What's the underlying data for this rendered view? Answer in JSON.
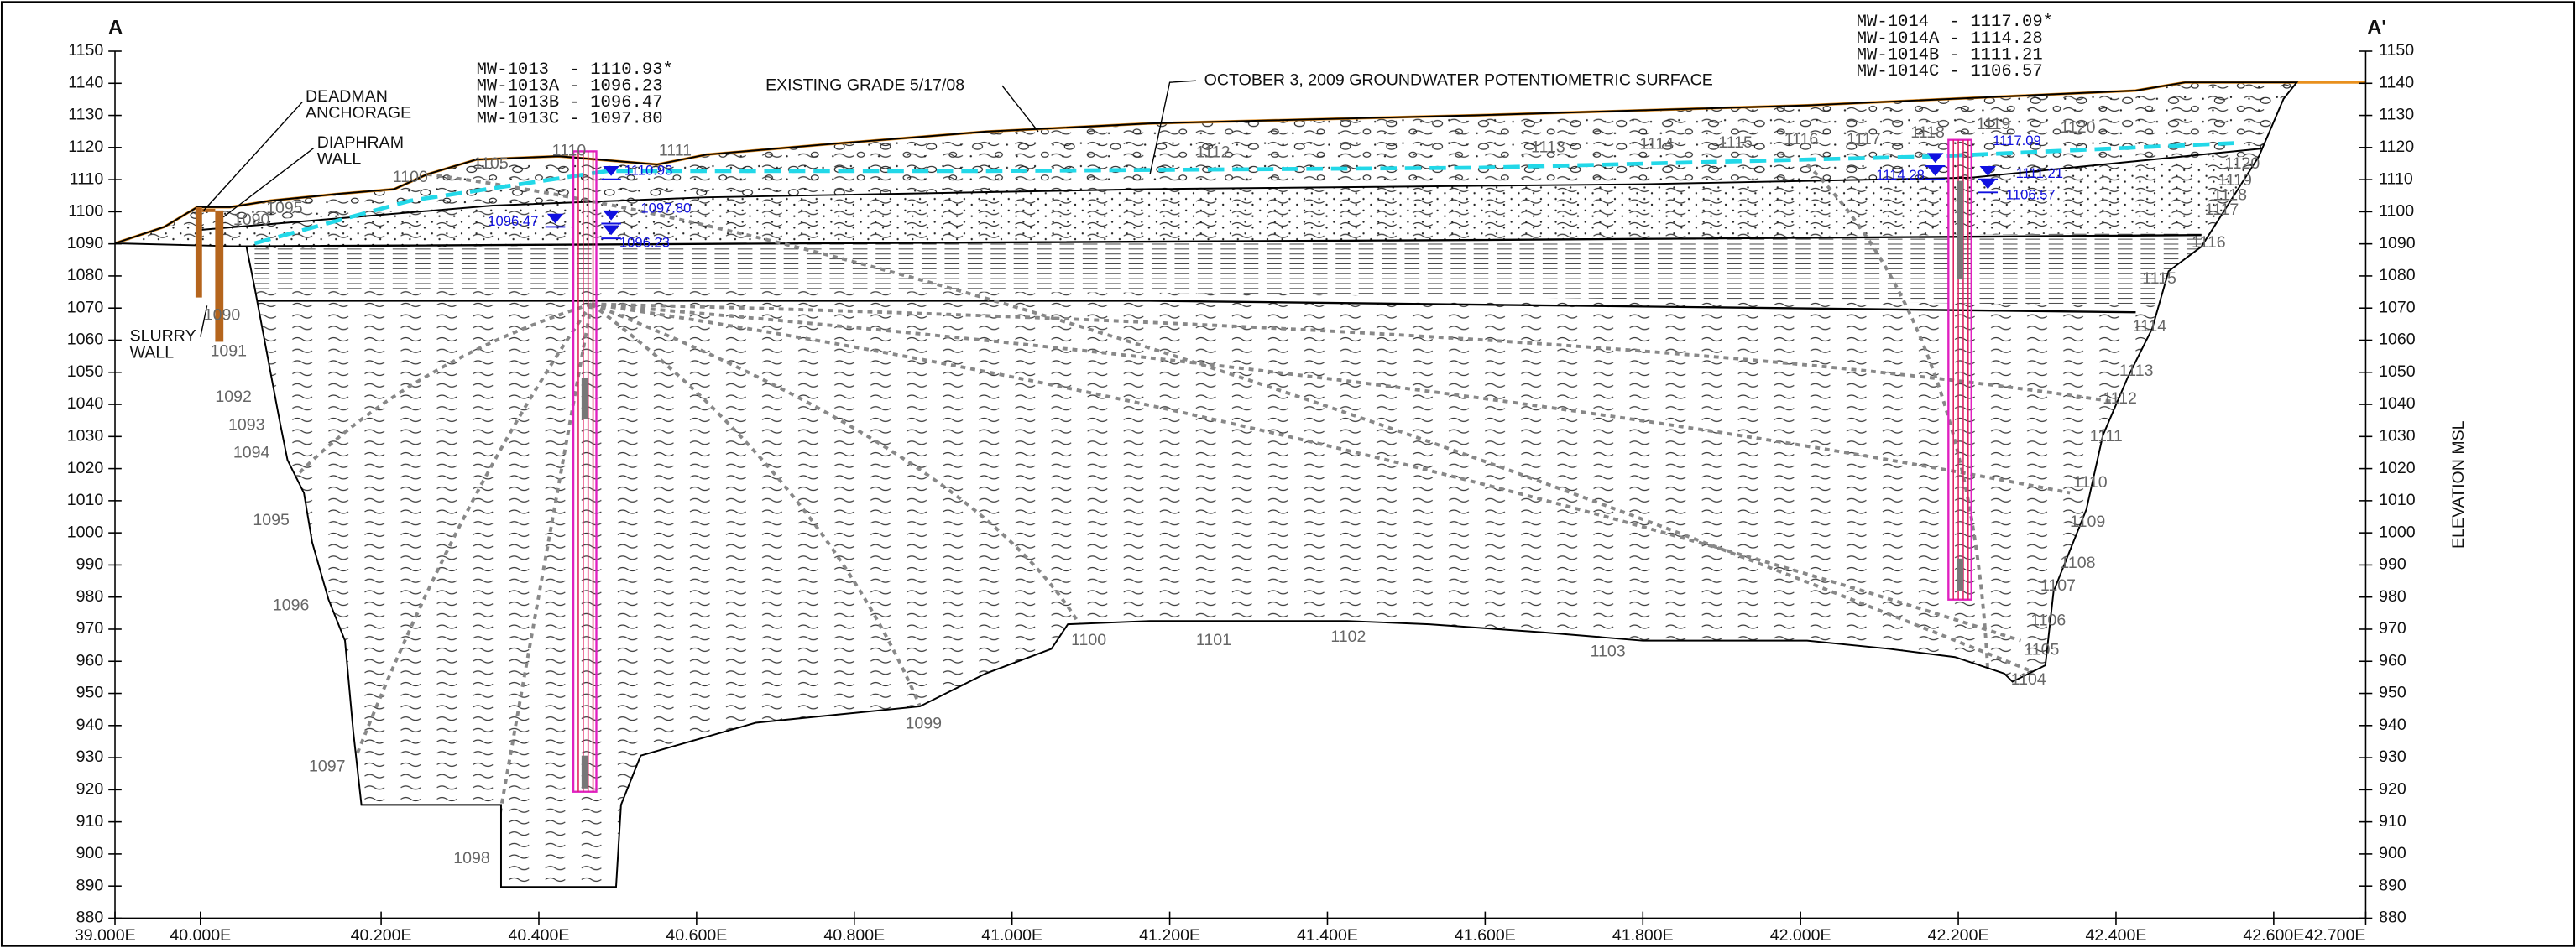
{
  "section_labels": {
    "start": "A",
    "end": "A'"
  },
  "elevation_axis": {
    "title": "ELEVATION MSL",
    "ticks": [
      1150,
      1140,
      1130,
      1120,
      1110,
      1100,
      1090,
      1080,
      1070,
      1060,
      1050,
      1040,
      1030,
      1020,
      1010,
      1000,
      990,
      980,
      970,
      960,
      950,
      940,
      930,
      920,
      910,
      900,
      890,
      880
    ]
  },
  "station_axis": {
    "labels": [
      "39.000E",
      "40.000E",
      "40.200E",
      "40.400E",
      "40.600E",
      "40.800E",
      "41.000E",
      "41.200E",
      "41.400E",
      "41.600E",
      "41.800E",
      "42.000E",
      "42.200E",
      "42.400E",
      "42.600E",
      "42.700E"
    ]
  },
  "callouts": {
    "deadman": [
      "DEADMAN",
      "ANCHORAGE"
    ],
    "diaphragm": [
      "DIAPHRAM",
      "WALL"
    ],
    "slurry": [
      "SLURRY",
      "WALL"
    ],
    "grade": "EXISTING GRADE 5/17/08",
    "groundwater": "OCTOBER 3, 2009 GROUNDWATER POTENTIOMETRIC SURFACE"
  },
  "wells": [
    {
      "rows": [
        "MW-1013  - 1110.93*",
        "MW-1013A - 1096.23",
        "MW-1013B - 1096.47",
        "MW-1013C - 1097.80"
      ],
      "levels": [
        "1110.93",
        "1096.47",
        "1097.80",
        "1096.23"
      ]
    },
    {
      "rows": [
        "MW-1014  - 1117.09*",
        "MW-1014A - 1114.28",
        "MW-1014B - 1111.21",
        "MW-1014C - 1106.57"
      ],
      "levels": [
        "1117.09",
        "1114.28",
        "1111.21",
        "1106.57"
      ]
    }
  ],
  "contour_labels": [
    "1090",
    "1095",
    "1100",
    "1105",
    "1110",
    "1111",
    "1090",
    "1091",
    "1092",
    "1093",
    "1094",
    "1095",
    "1096",
    "1097",
    "1098",
    "1099",
    "1100",
    "1101",
    "1102",
    "1103",
    "1104",
    "1105",
    "1106",
    "1107",
    "1108",
    "1109",
    "1110",
    "1111",
    "1112",
    "1113",
    "1114",
    "1115",
    "1116",
    "1117",
    "1118",
    "1119",
    "1120",
    "1112",
    "1113",
    "1114",
    "1115",
    "1116",
    "1117",
    "1118",
    "1119",
    "1120"
  ]
}
